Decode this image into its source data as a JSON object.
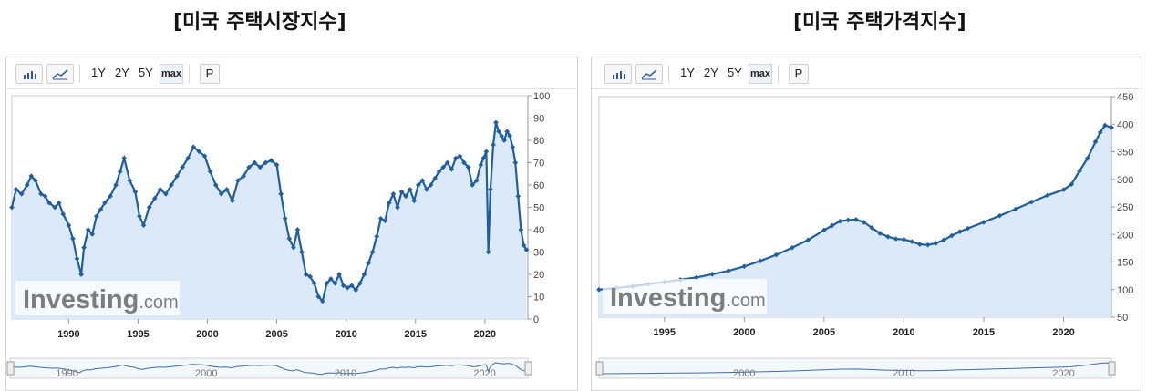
{
  "titles": [
    "[미국 주택시장지수]",
    "[미국 주택가격지수]"
  ],
  "toolbar": {
    "ranges": [
      "1Y",
      "2Y",
      "5Y",
      "max"
    ],
    "print": "P"
  },
  "watermark": {
    "main": "Investing",
    "suffix": ".com"
  },
  "colors": {
    "line": "#1f5fa0",
    "area": "#dce9f8",
    "marker": "#1f5fa0"
  },
  "chart_data": [
    {
      "type": "line",
      "y_axis_side": "right",
      "ylim": [
        0,
        100
      ],
      "yticks": [
        "100",
        "90",
        "80",
        "70",
        "60",
        "50",
        "40",
        "30",
        "20",
        "10",
        "0"
      ],
      "xlim": [
        1985.9,
        2023.1
      ],
      "xticks": [
        "1990",
        "1995",
        "2000",
        "2005",
        "2010",
        "2015",
        "2020"
      ],
      "navigator_labels": [
        "1990",
        "2000",
        "2010",
        "2020"
      ],
      "markers": true,
      "area_fill": true,
      "series": [
        {
          "x": [
            1985.9,
            1986.2,
            1986.6,
            1987.0,
            1987.3,
            1987.6,
            1988.0,
            1988.3,
            1988.6,
            1989.0,
            1989.3,
            1989.6,
            1990.0,
            1990.3,
            1990.6,
            1990.9,
            1991.1,
            1991.4,
            1991.7,
            1992.0,
            1992.3,
            1992.6,
            1993.0,
            1993.4,
            1993.7,
            1994.0,
            1994.4,
            1994.8,
            1995.1,
            1995.4,
            1995.8,
            1996.2,
            1996.6,
            1997.0,
            1997.4,
            1997.8,
            1998.2,
            1998.6,
            1999.0,
            1999.4,
            1999.8,
            2000.2,
            2000.6,
            2001.0,
            2001.4,
            2001.8,
            2002.2,
            2002.6,
            2003.0,
            2003.4,
            2003.8,
            2004.2,
            2004.6,
            2005.0,
            2005.3,
            2005.6,
            2005.9,
            2006.2,
            2006.5,
            2006.8,
            2007.1,
            2007.4,
            2007.7,
            2008.0,
            2008.3,
            2008.6,
            2008.9,
            2009.2,
            2009.5,
            2009.8,
            2010.1,
            2010.4,
            2010.7,
            2011.0,
            2011.3,
            2011.6,
            2011.9,
            2012.2,
            2012.5,
            2012.8,
            2013.1,
            2013.4,
            2013.7,
            2014.0,
            2014.3,
            2014.6,
            2014.9,
            2015.2,
            2015.5,
            2015.8,
            2016.1,
            2016.4,
            2016.7,
            2017.0,
            2017.3,
            2017.6,
            2017.9,
            2018.2,
            2018.5,
            2018.8,
            2019.1,
            2019.4,
            2019.7,
            2019.9,
            2020.1,
            2020.25,
            2020.4,
            2020.6,
            2020.8,
            2021.0,
            2021.2,
            2021.4,
            2021.6,
            2021.8,
            2022.0,
            2022.2,
            2022.4,
            2022.6,
            2022.8,
            2023.0
          ],
          "y": [
            50,
            58,
            56,
            60,
            64,
            62,
            56,
            55,
            52,
            50,
            52,
            47,
            42,
            36,
            27,
            20,
            32,
            40,
            38,
            46,
            49,
            52,
            55,
            60,
            66,
            72,
            62,
            57,
            46,
            42,
            50,
            54,
            58,
            56,
            60,
            64,
            68,
            72,
            77,
            75,
            73,
            66,
            60,
            56,
            58,
            53,
            62,
            64,
            68,
            70,
            68,
            70,
            71,
            69,
            56,
            45,
            36,
            32,
            40,
            30,
            20,
            19,
            16,
            10,
            8,
            16,
            18,
            16,
            20,
            15,
            14,
            15,
            13,
            16,
            20,
            25,
            30,
            37,
            45,
            44,
            52,
            56,
            50,
            57,
            55,
            58,
            53,
            60,
            62,
            58,
            60,
            63,
            66,
            68,
            70,
            67,
            72,
            73,
            70,
            68,
            60,
            62,
            69,
            72,
            75,
            30,
            58,
            78,
            88,
            84,
            82,
            80,
            84,
            82,
            77,
            70,
            55,
            40,
            33,
            31
          ]
        }
      ]
    },
    {
      "type": "line",
      "y_axis_side": "right",
      "ylim": [
        50,
        450
      ],
      "yticks": [
        "450",
        "400",
        "350",
        "300",
        "250",
        "200",
        "150",
        "100",
        "50"
      ],
      "xlim": [
        1990.9,
        2023.0
      ],
      "xticks": [
        "1995",
        "2000",
        "2005",
        "2010",
        "2015",
        "2020"
      ],
      "navigator_labels": [
        "2000",
        "2010",
        "2020"
      ],
      "markers": true,
      "area_fill": true,
      "series": [
        {
          "x": [
            1990.9,
            1992.0,
            1993.0,
            1994.0,
            1995.0,
            1996.0,
            1997.0,
            1998.0,
            1999.0,
            2000.0,
            2001.0,
            2002.0,
            2003.0,
            2004.0,
            2005.0,
            2005.5,
            2006.0,
            2006.5,
            2007.0,
            2007.5,
            2008.0,
            2008.5,
            2009.0,
            2009.5,
            2010.0,
            2010.5,
            2011.0,
            2011.5,
            2012.0,
            2012.5,
            2013.0,
            2013.5,
            2014.0,
            2015.0,
            2016.0,
            2017.0,
            2018.0,
            2019.0,
            2020.0,
            2020.5,
            2021.0,
            2021.5,
            2022.0,
            2022.3,
            2022.6,
            2023.0
          ],
          "y": [
            100,
            103,
            106,
            110,
            114,
            118,
            122,
            128,
            134,
            142,
            152,
            163,
            176,
            190,
            208,
            216,
            224,
            226,
            227,
            222,
            212,
            202,
            196,
            192,
            191,
            187,
            182,
            181,
            184,
            190,
            198,
            205,
            211,
            222,
            234,
            246,
            259,
            271,
            281,
            291,
            315,
            338,
            368,
            385,
            398,
            394
          ]
        }
      ]
    }
  ]
}
